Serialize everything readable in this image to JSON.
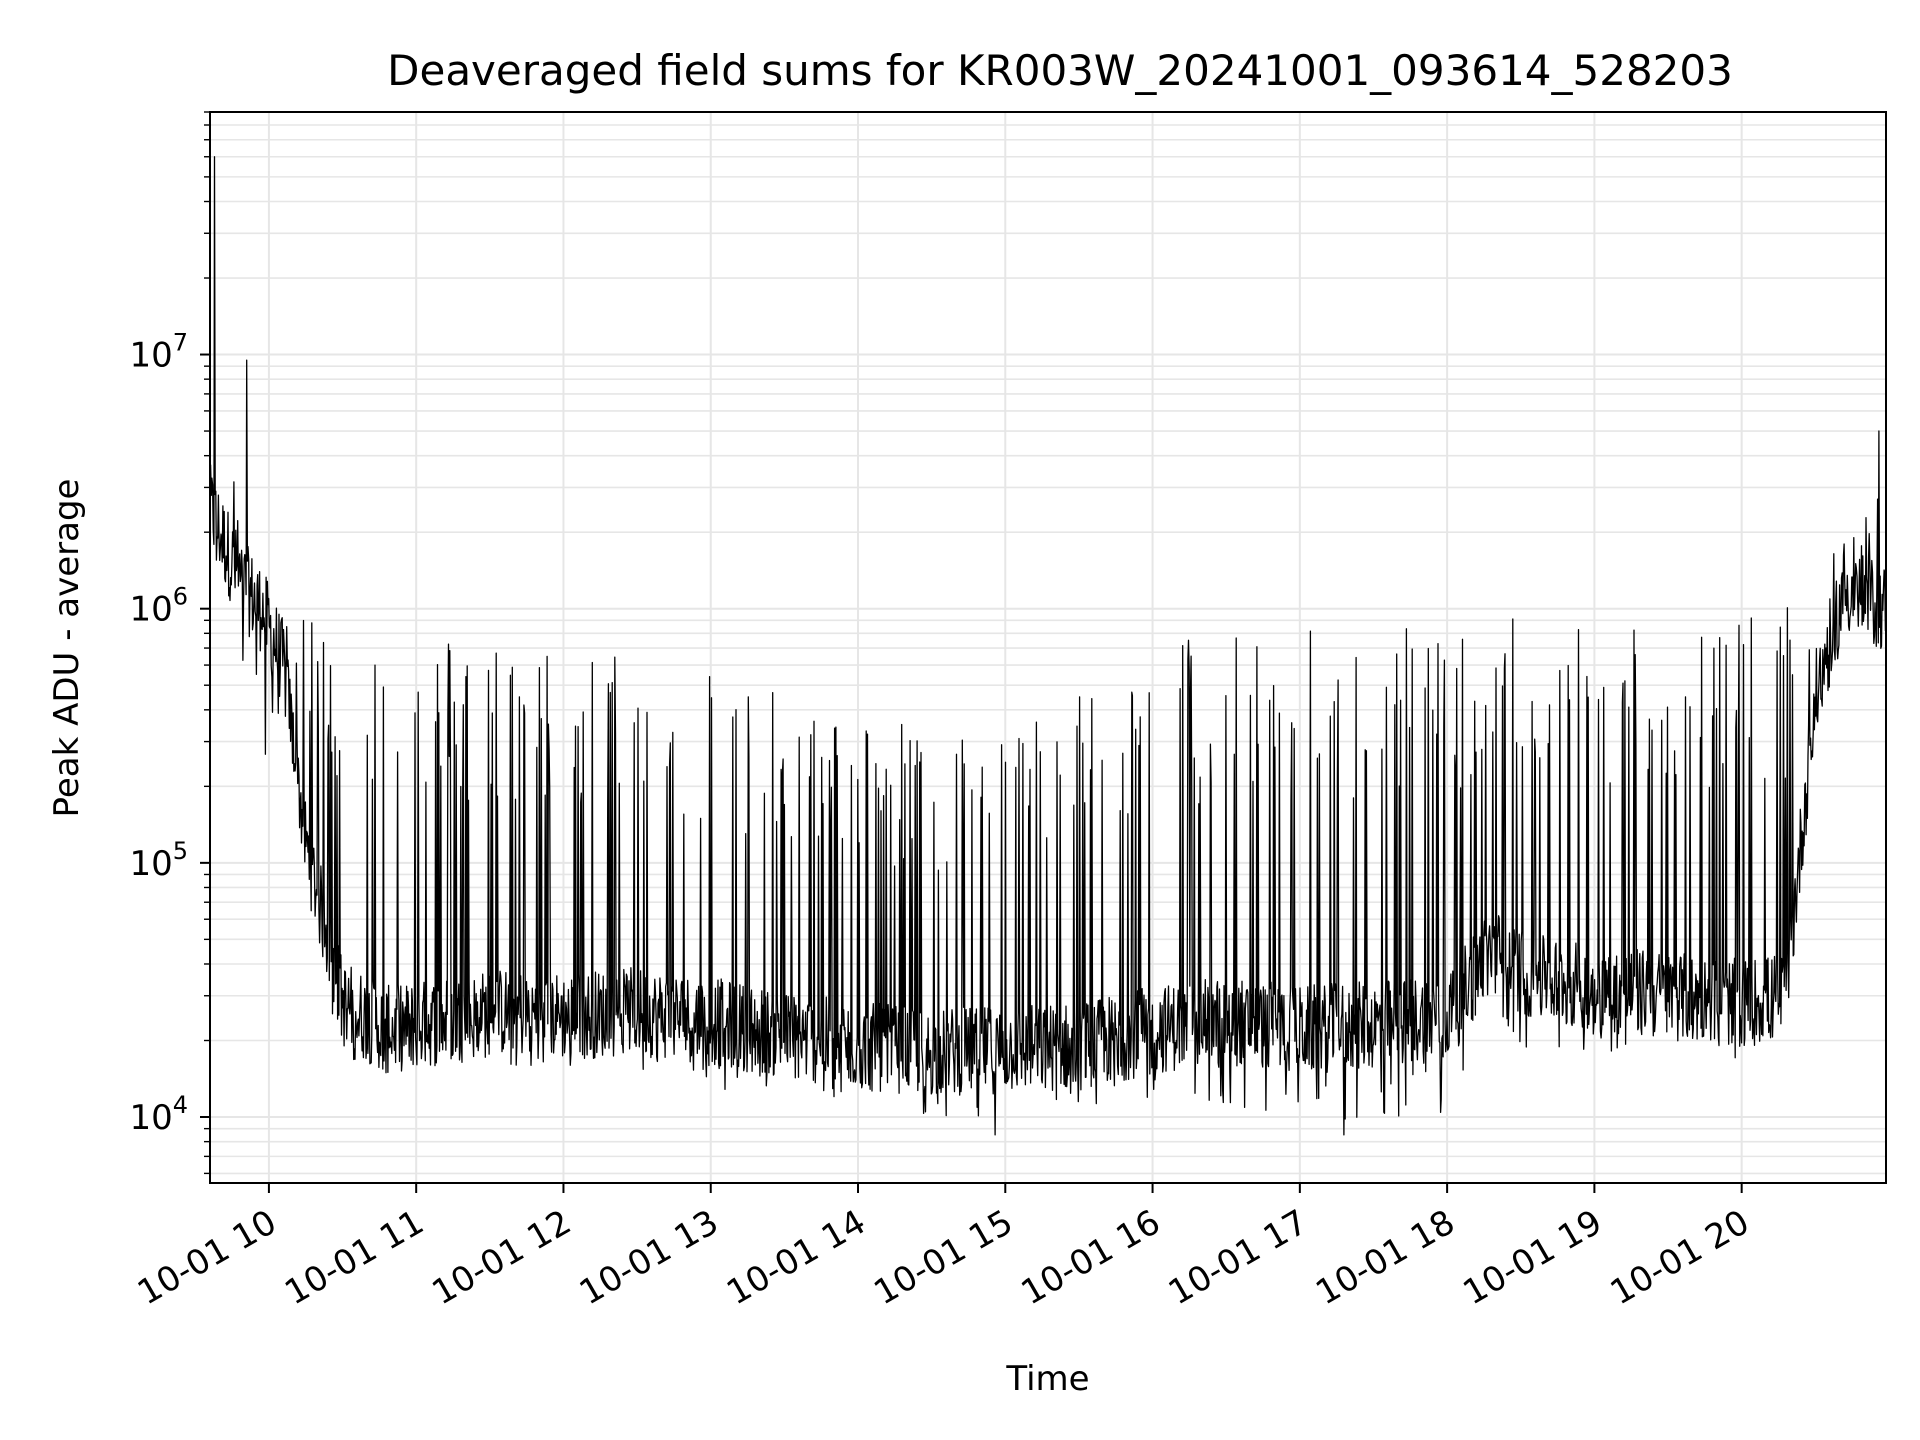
{
  "chart_data": {
    "type": "line",
    "title": "Deaveraged field sums for KR003W_20241001_093614_528203",
    "xlabel": "Time",
    "ylabel": "Peak ADU - average",
    "yscale": "log",
    "ylim": [
      5500,
      90000000
    ],
    "xlim": [
      "2024-10-01 09:36",
      "2024-10-01 20:59"
    ],
    "grid": true,
    "grid_color": "#e6e6e6",
    "line_color": "#000000",
    "x_ticks": [
      "10-01 10",
      "10-01 11",
      "10-01 12",
      "10-01 13",
      "10-01 14",
      "10-01 15",
      "10-01 16",
      "10-01 17",
      "10-01 18",
      "10-01 19",
      "10-01 20"
    ],
    "y_ticks": [
      {
        "base": "10",
        "exp": "4",
        "value": 10000
      },
      {
        "base": "10",
        "exp": "5",
        "value": 100000
      },
      {
        "base": "10",
        "exp": "6",
        "value": 1000000
      },
      {
        "base": "10",
        "exp": "7",
        "value": 10000000
      }
    ],
    "envelope": {
      "note_x_units": "hours of 2024-10-01",
      "x": [
        9.6,
        9.8,
        9.95,
        10.1,
        10.25,
        10.5,
        10.8,
        11.2,
        11.6,
        12.0,
        12.5,
        13.0,
        13.5,
        14.0,
        14.5,
        15.0,
        15.5,
        16.0,
        16.5,
        17.0,
        17.5,
        18.0,
        18.3,
        18.6,
        19.0,
        19.5,
        20.0,
        20.3,
        20.5,
        20.7,
        20.98
      ],
      "baseline": [
        2500000,
        1300000,
        1000000,
        600000,
        120000,
        28000,
        22000,
        24000,
        26000,
        25000,
        26000,
        24000,
        21000,
        19000,
        18000,
        18500,
        19000,
        22000,
        24000,
        22000,
        23000,
        25000,
        45000,
        35000,
        32000,
        30000,
        28000,
        30000,
        450000,
        1200000,
        1000000
      ],
      "upper": [
        60000000,
        2000000,
        1200000,
        950000,
        900000,
        880000,
        850000,
        830000,
        800000,
        700000,
        700000,
        650000,
        450000,
        400000,
        350000,
        350000,
        500000,
        800000,
        850000,
        850000,
        850000,
        900000,
        950000,
        950000,
        950000,
        950000,
        950000,
        1000000,
        1200000,
        2000000,
        3000000
      ],
      "lower": [
        1200000,
        700000,
        250000,
        150000,
        40000,
        16000,
        14000,
        15000,
        16000,
        15000,
        14000,
        13000,
        12000,
        11000,
        10000,
        10000,
        11000,
        12000,
        11000,
        9500,
        9000,
        10000,
        20000,
        18000,
        17000,
        18000,
        17000,
        20000,
        300000,
        900000,
        800000
      ]
    },
    "spikes": [
      {
        "x": 9.63,
        "y": 60000000
      },
      {
        "x": 9.85,
        "y": 9500000
      },
      {
        "x": 14.93,
        "y": 8500
      },
      {
        "x": 17.3,
        "y": 8500
      },
      {
        "x": 20.93,
        "y": 5000000
      }
    ]
  }
}
